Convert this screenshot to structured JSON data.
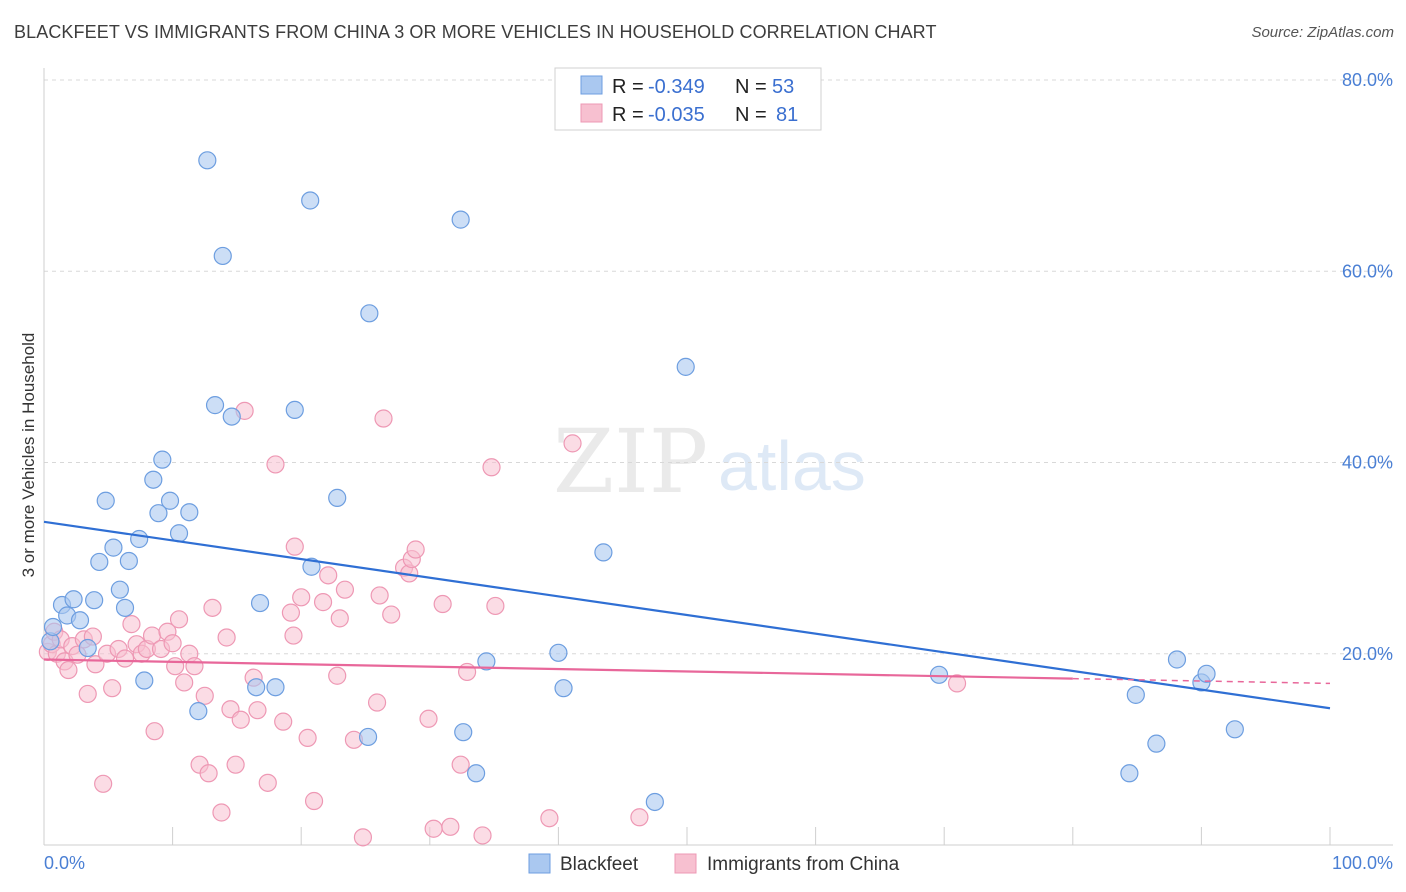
{
  "title": "BLACKFEET VS IMMIGRANTS FROM CHINA 3 OR MORE VEHICLES IN HOUSEHOLD CORRELATION CHART",
  "source": "Source: ZipAtlas.com",
  "watermark": {
    "zip": "ZIP",
    "atlas": "atlas"
  },
  "colors": {
    "blue_fill": "#aac8f0",
    "blue_stroke": "#6d9ee0",
    "blue_line": "#2f6fd4",
    "pink_fill": "#f7c0d0",
    "pink_stroke": "#ee98b4",
    "pink_line": "#e8679a",
    "grid": "#d8d8d8",
    "tick_text": "#4a7fd4"
  },
  "legend": {
    "row1": {
      "r_label": "R =",
      "r_value": "-0.349",
      "n_label": "N =",
      "n_value": "53"
    },
    "row2": {
      "r_label": "R =",
      "r_value": "-0.035",
      "n_label": "N =",
      "n_value": "81"
    }
  },
  "chart_data": {
    "type": "scatter",
    "title": "BLACKFEET VS IMMIGRANTS FROM CHINA 3 OR MORE VEHICLES IN HOUSEHOLD CORRELATION CHART",
    "xlabel": "",
    "ylabel": "3 or more Vehicles in Household",
    "xlim": [
      0,
      100
    ],
    "ylim": [
      0,
      80
    ],
    "x_ticks": [
      "0.0%",
      "100.0%"
    ],
    "y_ticks": [
      {
        "value": 20,
        "label": "20.0%"
      },
      {
        "value": 40,
        "label": "40.0%"
      },
      {
        "value": 60,
        "label": "60.0%"
      },
      {
        "value": 80,
        "label": "80.0%"
      }
    ],
    "grid": true,
    "legend_position": "bottom",
    "series": [
      {
        "name": "Blackfeet",
        "color": "#aac8f0",
        "trend": {
          "x0": 0,
          "y0": 33.8,
          "x1": 100,
          "y1": 14.3,
          "dashed_from": null
        },
        "points": [
          [
            0.5,
            21.3
          ],
          [
            0.7,
            22.8
          ],
          [
            1.4,
            25.1
          ],
          [
            1.8,
            24.0
          ],
          [
            2.3,
            25.7
          ],
          [
            2.8,
            23.5
          ],
          [
            3.4,
            20.6
          ],
          [
            3.9,
            25.6
          ],
          [
            4.3,
            29.6
          ],
          [
            4.8,
            36.0
          ],
          [
            5.4,
            31.1
          ],
          [
            5.9,
            26.7
          ],
          [
            6.3,
            24.8
          ],
          [
            6.6,
            29.7
          ],
          [
            7.4,
            32.0
          ],
          [
            7.8,
            17.2
          ],
          [
            8.5,
            38.2
          ],
          [
            8.9,
            34.7
          ],
          [
            9.2,
            40.3
          ],
          [
            9.8,
            36.0
          ],
          [
            10.5,
            32.6
          ],
          [
            11.3,
            34.8
          ],
          [
            12.0,
            14.0
          ],
          [
            12.7,
            71.6
          ],
          [
            13.3,
            46.0
          ],
          [
            13.9,
            61.6
          ],
          [
            14.6,
            44.8
          ],
          [
            16.5,
            16.5
          ],
          [
            16.8,
            25.3
          ],
          [
            18.0,
            16.5
          ],
          [
            19.5,
            45.5
          ],
          [
            20.7,
            67.4
          ],
          [
            20.8,
            29.1
          ],
          [
            22.8,
            36.3
          ],
          [
            25.2,
            11.3
          ],
          [
            25.3,
            55.6
          ],
          [
            32.4,
            65.4
          ],
          [
            32.6,
            11.8
          ],
          [
            33.6,
            7.5
          ],
          [
            34.4,
            19.2
          ],
          [
            40.0,
            20.1
          ],
          [
            40.4,
            16.4
          ],
          [
            43.5,
            30.6
          ],
          [
            47.5,
            4.5
          ],
          [
            49.9,
            50.0
          ],
          [
            69.6,
            17.8
          ],
          [
            84.4,
            7.5
          ],
          [
            84.9,
            15.7
          ],
          [
            86.5,
            10.6
          ],
          [
            88.1,
            19.4
          ],
          [
            90.0,
            17.0
          ],
          [
            90.4,
            17.9
          ],
          [
            92.6,
            12.1
          ]
        ]
      },
      {
        "name": "Immigrants from China",
        "color": "#f7c0d0",
        "trend": {
          "x0": 0,
          "y0": 19.4,
          "x1": 100,
          "y1": 16.9,
          "dashed_from": 80
        },
        "points": [
          [
            0.3,
            20.2
          ],
          [
            0.6,
            21.0
          ],
          [
            0.8,
            22.3
          ],
          [
            1.0,
            20.0
          ],
          [
            1.3,
            21.5
          ],
          [
            1.6,
            19.2
          ],
          [
            1.9,
            18.3
          ],
          [
            2.2,
            20.8
          ],
          [
            2.6,
            19.9
          ],
          [
            3.1,
            21.5
          ],
          [
            3.4,
            15.8
          ],
          [
            3.8,
            21.8
          ],
          [
            4.0,
            18.9
          ],
          [
            4.6,
            6.4
          ],
          [
            4.9,
            20.0
          ],
          [
            5.3,
            16.4
          ],
          [
            5.8,
            20.5
          ],
          [
            6.3,
            19.5
          ],
          [
            6.8,
            23.1
          ],
          [
            7.2,
            21.0
          ],
          [
            7.6,
            20.0
          ],
          [
            8.0,
            20.5
          ],
          [
            8.4,
            21.9
          ],
          [
            8.6,
            11.9
          ],
          [
            9.1,
            20.5
          ],
          [
            9.6,
            22.3
          ],
          [
            10.0,
            21.1
          ],
          [
            10.2,
            18.7
          ],
          [
            10.5,
            23.6
          ],
          [
            10.9,
            17.0
          ],
          [
            11.3,
            20.0
          ],
          [
            11.7,
            18.7
          ],
          [
            12.1,
            8.4
          ],
          [
            12.5,
            15.6
          ],
          [
            12.8,
            7.5
          ],
          [
            13.1,
            24.8
          ],
          [
            13.8,
            3.4
          ],
          [
            14.2,
            21.7
          ],
          [
            14.5,
            14.2
          ],
          [
            14.9,
            8.4
          ],
          [
            15.3,
            13.1
          ],
          [
            15.6,
            45.4
          ],
          [
            16.3,
            17.5
          ],
          [
            16.6,
            14.1
          ],
          [
            17.4,
            6.5
          ],
          [
            18.0,
            39.8
          ],
          [
            18.6,
            12.9
          ],
          [
            19.2,
            24.3
          ],
          [
            19.4,
            21.9
          ],
          [
            19.5,
            31.2
          ],
          [
            20.0,
            25.9
          ],
          [
            20.5,
            11.2
          ],
          [
            21.0,
            4.6
          ],
          [
            21.7,
            25.4
          ],
          [
            22.1,
            28.2
          ],
          [
            22.8,
            17.7
          ],
          [
            23.0,
            23.7
          ],
          [
            23.4,
            26.7
          ],
          [
            24.1,
            11.0
          ],
          [
            24.8,
            0.8
          ],
          [
            25.9,
            14.9
          ],
          [
            26.1,
            26.1
          ],
          [
            26.4,
            44.6
          ],
          [
            27.0,
            24.1
          ],
          [
            28.0,
            29.0
          ],
          [
            28.4,
            28.4
          ],
          [
            28.6,
            29.9
          ],
          [
            28.9,
            30.9
          ],
          [
            29.9,
            13.2
          ],
          [
            30.3,
            1.7
          ],
          [
            31.0,
            25.2
          ],
          [
            31.6,
            1.9
          ],
          [
            32.4,
            8.4
          ],
          [
            32.9,
            18.1
          ],
          [
            34.1,
            1.0
          ],
          [
            34.8,
            39.5
          ],
          [
            35.1,
            25.0
          ],
          [
            39.3,
            2.8
          ],
          [
            41.1,
            42.0
          ],
          [
            46.3,
            2.9
          ],
          [
            71.0,
            16.9
          ]
        ]
      }
    ]
  },
  "bottom_legend": {
    "blackfeet": "Blackfeet",
    "china": "Immigrants from China"
  }
}
